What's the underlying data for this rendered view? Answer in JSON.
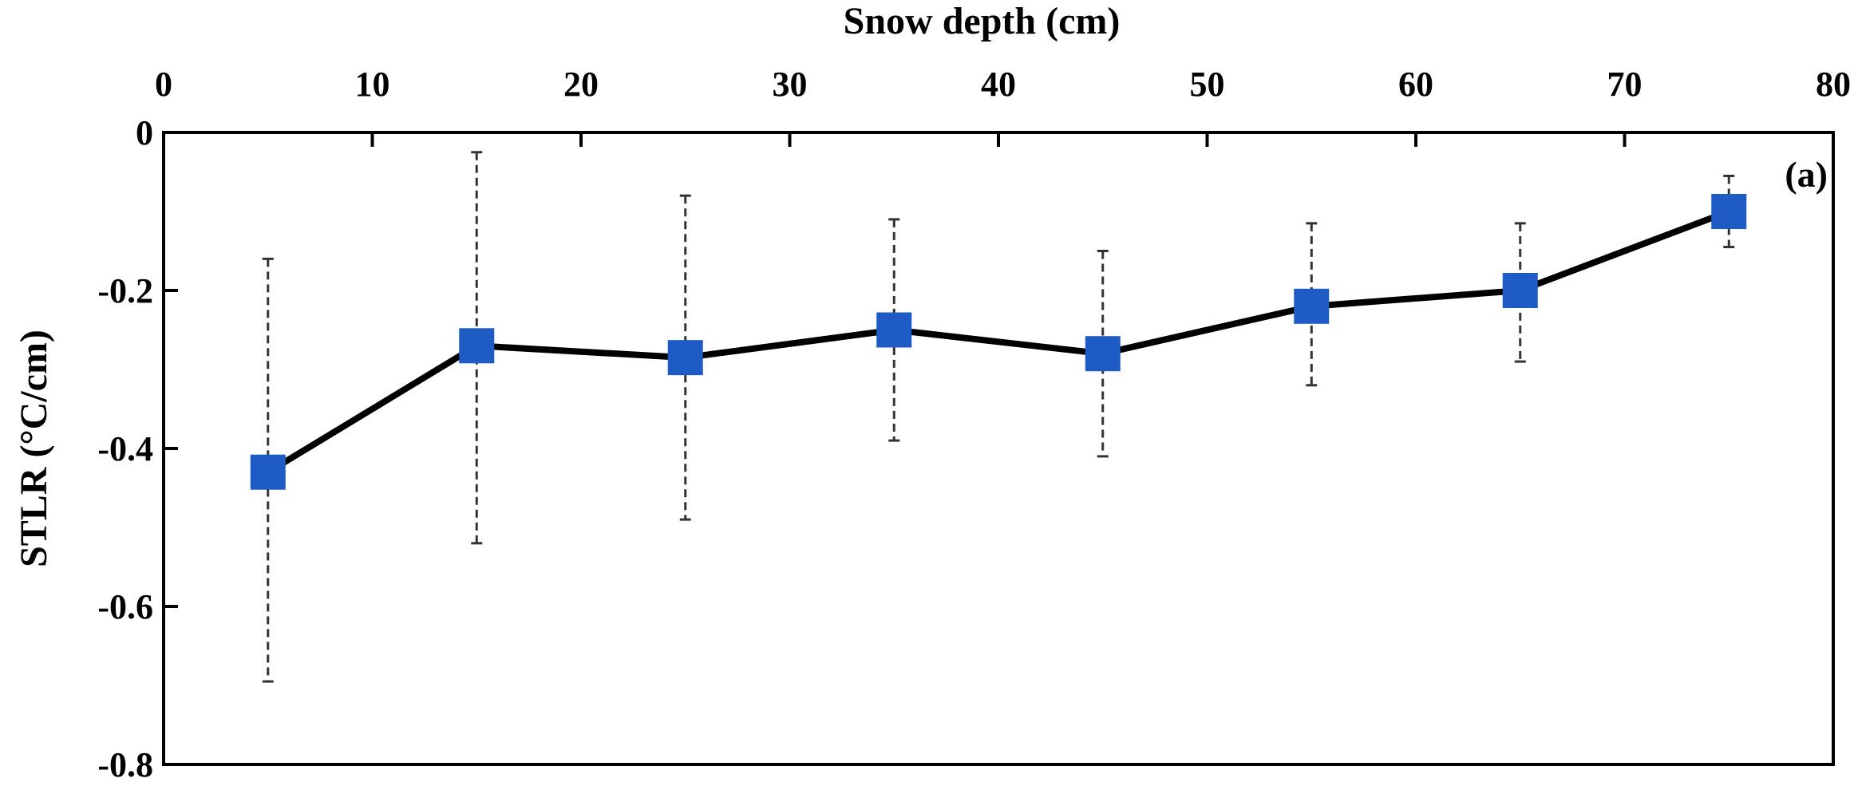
{
  "chart_data": {
    "type": "line",
    "panel_label": "(a)",
    "xlabel": "Snow depth (cm)",
    "ylabel": "STLR (°C/cm)",
    "xlim": [
      0,
      80
    ],
    "ylim": [
      -0.8,
      0
    ],
    "x_ticks": [
      "0",
      "10",
      "20",
      "30",
      "40",
      "50",
      "60",
      "70",
      "80"
    ],
    "y_ticks": [
      "0",
      "-0.2",
      "-0.4",
      "-0.6",
      "-0.8"
    ],
    "x_axis_position": "top",
    "grid": false,
    "colors": {
      "marker": "#1f5bc4",
      "line": "#000000",
      "error_bar": "#333333"
    },
    "series": [
      {
        "x": [
          5,
          15,
          25,
          35,
          45,
          55,
          65,
          75
        ],
        "y": [
          -0.43,
          -0.27,
          -0.285,
          -0.25,
          -0.28,
          -0.22,
          -0.2,
          -0.1
        ],
        "y_err_low": [
          -0.695,
          -0.52,
          -0.49,
          -0.39,
          -0.41,
          -0.32,
          -0.29,
          -0.145
        ],
        "y_err_high": [
          -0.16,
          -0.025,
          -0.08,
          -0.11,
          -0.15,
          -0.115,
          -0.115,
          -0.055
        ]
      }
    ]
  }
}
